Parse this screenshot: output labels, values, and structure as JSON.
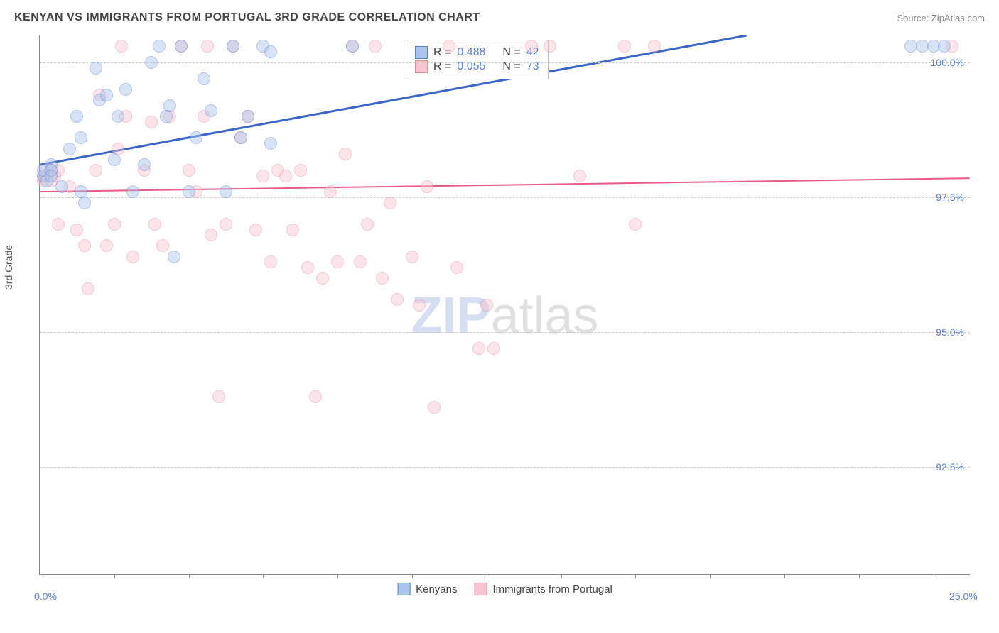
{
  "header": {
    "title": "KENYAN VS IMMIGRANTS FROM PORTUGAL 3RD GRADE CORRELATION CHART",
    "source": "Source: ZipAtlas.com"
  },
  "chart": {
    "type": "scatter",
    "ylabel": "3rd Grade",
    "xlim": [
      0,
      25
    ],
    "ylim": [
      90.5,
      100.5
    ],
    "xtick_positions": [
      0,
      2,
      4,
      6,
      8,
      10,
      12,
      14,
      16,
      18,
      20,
      22,
      24
    ],
    "xtick_labels_shown": {
      "0": "0.0%",
      "25": "25.0%"
    },
    "ytick_positions": [
      92.5,
      95.0,
      97.5,
      100.0
    ],
    "ytick_labels": [
      "92.5%",
      "95.0%",
      "97.5%",
      "100.0%"
    ],
    "grid_color": "#cccccc",
    "background_color": "#ffffff",
    "point_radius": 9,
    "point_opacity": 0.45,
    "series": {
      "kenyans": {
        "label": "Kenyans",
        "fill": "#a9c5eb",
        "stroke": "#5b7fd1",
        "r_value": "0.488",
        "n_value": "42",
        "trend": {
          "x1": 0,
          "y1": 98.1,
          "x2": 19,
          "y2": 100.5,
          "color": "#3a66c9",
          "width": 3
        },
        "points": [
          [
            0.1,
            97.9
          ],
          [
            0.1,
            98.0
          ],
          [
            0.2,
            97.8
          ],
          [
            0.3,
            98.1
          ],
          [
            0.3,
            98.0
          ],
          [
            0.3,
            97.9
          ],
          [
            0.6,
            97.7
          ],
          [
            0.8,
            98.4
          ],
          [
            1.0,
            99.0
          ],
          [
            1.1,
            98.6
          ],
          [
            1.1,
            97.6
          ],
          [
            1.2,
            97.4
          ],
          [
            1.5,
            99.9
          ],
          [
            1.6,
            99.3
          ],
          [
            1.8,
            99.4
          ],
          [
            2.0,
            98.2
          ],
          [
            2.1,
            99.0
          ],
          [
            2.3,
            99.5
          ],
          [
            2.5,
            97.6
          ],
          [
            2.8,
            98.1
          ],
          [
            3.0,
            100.0
          ],
          [
            3.2,
            100.3
          ],
          [
            3.4,
            99.0
          ],
          [
            3.5,
            99.2
          ],
          [
            3.6,
            96.4
          ],
          [
            3.8,
            100.3
          ],
          [
            4.0,
            97.6
          ],
          [
            4.2,
            98.6
          ],
          [
            4.4,
            99.7
          ],
          [
            4.6,
            99.1
          ],
          [
            5.0,
            97.6
          ],
          [
            5.2,
            100.3
          ],
          [
            5.4,
            98.6
          ],
          [
            5.6,
            99.0
          ],
          [
            6.0,
            100.3
          ],
          [
            6.2,
            100.2
          ],
          [
            6.2,
            98.5
          ],
          [
            8.4,
            100.3
          ],
          [
            23.4,
            100.3
          ],
          [
            23.7,
            100.3
          ],
          [
            24.0,
            100.3
          ],
          [
            24.3,
            100.3
          ]
        ]
      },
      "portugal": {
        "label": "Immigrants from Portugal",
        "fill": "#f7c5d1",
        "stroke": "#e08aa0",
        "r_value": "0.055",
        "n_value": "73",
        "trend": {
          "x1": 0,
          "y1": 97.6,
          "x2": 25,
          "y2": 97.85,
          "color": "#e65a83",
          "width": 2
        },
        "points": [
          [
            0.1,
            97.9
          ],
          [
            0.1,
            97.8
          ],
          [
            0.2,
            98.0
          ],
          [
            0.2,
            97.9
          ],
          [
            0.3,
            97.8
          ],
          [
            0.3,
            98.0
          ],
          [
            0.4,
            97.9
          ],
          [
            0.5,
            97.0
          ],
          [
            0.8,
            97.7
          ],
          [
            1.0,
            96.9
          ],
          [
            1.2,
            96.6
          ],
          [
            1.3,
            95.8
          ],
          [
            1.5,
            98.0
          ],
          [
            1.6,
            99.4
          ],
          [
            1.8,
            96.6
          ],
          [
            2.0,
            97.0
          ],
          [
            2.1,
            98.4
          ],
          [
            2.3,
            99.0
          ],
          [
            2.5,
            96.4
          ],
          [
            2.8,
            98.0
          ],
          [
            3.0,
            98.9
          ],
          [
            3.1,
            97.0
          ],
          [
            3.3,
            96.6
          ],
          [
            3.5,
            99.0
          ],
          [
            3.8,
            100.3
          ],
          [
            4.0,
            98.0
          ],
          [
            4.2,
            97.6
          ],
          [
            4.4,
            99.0
          ],
          [
            4.6,
            96.8
          ],
          [
            4.8,
            93.8
          ],
          [
            5.0,
            97.0
          ],
          [
            5.2,
            100.3
          ],
          [
            5.4,
            98.6
          ],
          [
            5.6,
            99.0
          ],
          [
            5.8,
            96.9
          ],
          [
            6.0,
            97.9
          ],
          [
            6.2,
            96.3
          ],
          [
            6.4,
            98.0
          ],
          [
            6.6,
            97.9
          ],
          [
            6.8,
            96.9
          ],
          [
            7.0,
            98.0
          ],
          [
            7.2,
            96.2
          ],
          [
            7.4,
            93.8
          ],
          [
            7.6,
            96.0
          ],
          [
            7.8,
            97.6
          ],
          [
            8.0,
            96.3
          ],
          [
            8.2,
            98.3
          ],
          [
            8.4,
            100.3
          ],
          [
            8.6,
            96.3
          ],
          [
            8.8,
            97.0
          ],
          [
            9.0,
            100.3
          ],
          [
            9.2,
            96.0
          ],
          [
            9.4,
            97.4
          ],
          [
            9.6,
            95.6
          ],
          [
            10.0,
            96.4
          ],
          [
            10.2,
            95.5
          ],
          [
            10.4,
            97.7
          ],
          [
            10.6,
            93.6
          ],
          [
            11.0,
            100.3
          ],
          [
            11.2,
            96.2
          ],
          [
            11.8,
            94.7
          ],
          [
            12.0,
            95.5
          ],
          [
            12.2,
            94.7
          ],
          [
            13.2,
            100.3
          ],
          [
            13.7,
            100.3
          ],
          [
            14.5,
            97.9
          ],
          [
            15.7,
            100.3
          ],
          [
            16.0,
            97.0
          ],
          [
            16.5,
            100.3
          ],
          [
            24.5,
            100.3
          ],
          [
            4.5,
            100.3
          ],
          [
            2.2,
            100.3
          ],
          [
            0.5,
            98.0
          ]
        ]
      }
    },
    "rbox": {
      "r_label": "R =",
      "n_label": "N ="
    },
    "watermark": {
      "part1": "ZIP",
      "part2": "atlas"
    }
  }
}
